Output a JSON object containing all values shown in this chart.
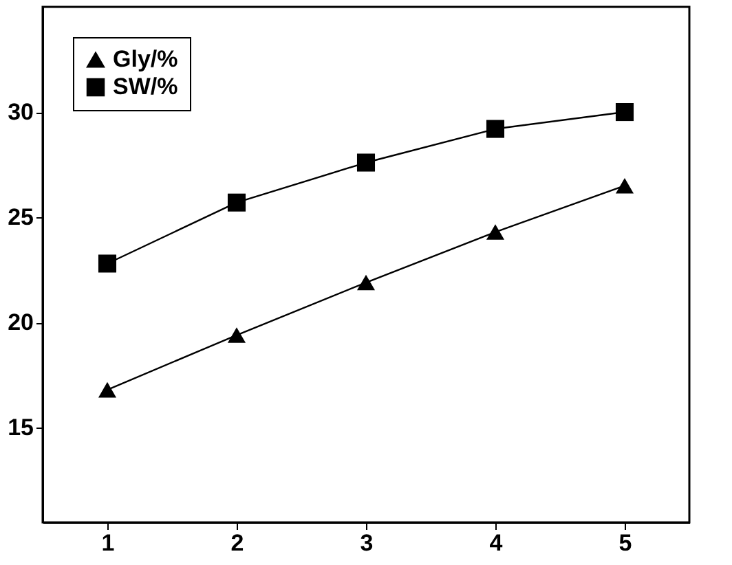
{
  "chart_data": {
    "type": "line",
    "x": [
      1,
      2,
      3,
      4,
      5
    ],
    "series": [
      {
        "name": "Gly/%",
        "color": "#000000",
        "marker": "triangle",
        "values": [
          16.8,
          19.4,
          21.9,
          24.3,
          26.5
        ]
      },
      {
        "name": "SW/%",
        "color": "#000000",
        "marker": "square",
        "values": [
          22.8,
          25.7,
          27.6,
          29.2,
          30.0
        ]
      }
    ],
    "xlim": [
      0.5,
      5.5
    ],
    "xticks": [
      1,
      2,
      3,
      4,
      5
    ],
    "ylim": [
      10.5,
      35
    ],
    "yticks": [
      15,
      20,
      25,
      30
    ],
    "grid": false,
    "legend": "top left",
    "line_style": "solid"
  }
}
